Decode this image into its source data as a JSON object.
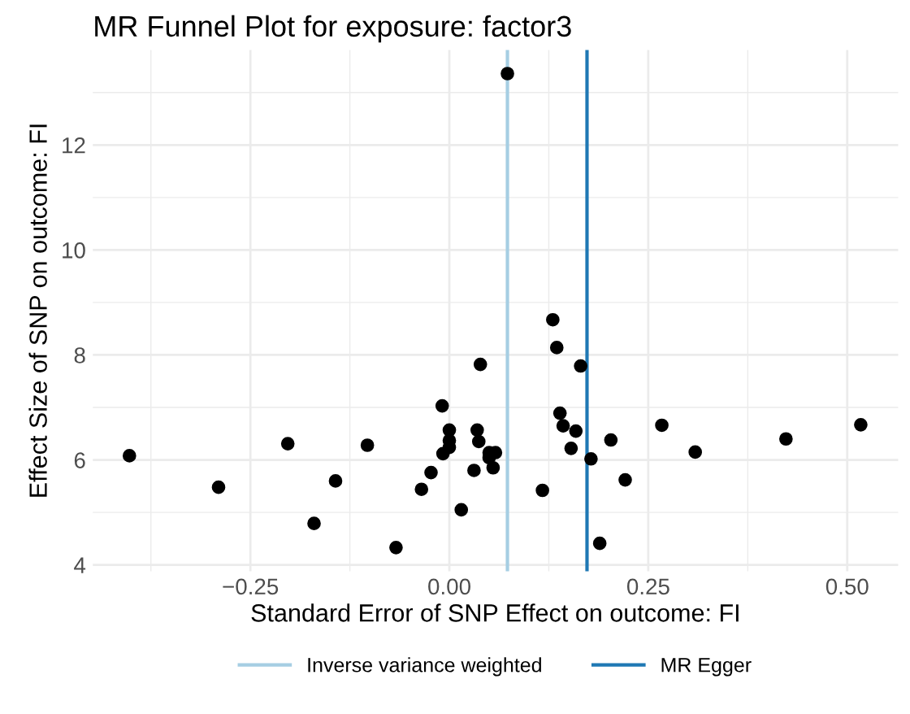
{
  "chart_data": {
    "type": "scatter",
    "title": "MR Funnel Plot for exposure: factor3",
    "xlabel": "Standard Error of SNP Effect on outcome: FI",
    "ylabel": "Effect Size of SNP on outcome: FI",
    "x": [
      -0.402,
      -0.29,
      -0.203,
      -0.17,
      -0.143,
      -0.103,
      -0.067,
      -0.035,
      -0.023,
      -0.009,
      -0.008,
      0.0,
      0.0,
      0.0,
      0.015,
      0.031,
      0.035,
      0.039,
      0.037,
      0.05,
      0.05,
      0.058,
      0.055,
      0.073,
      0.13,
      0.135,
      0.165,
      0.139,
      0.143,
      0.159,
      0.153,
      0.117,
      0.178,
      0.189,
      0.203,
      0.221,
      0.267,
      0.309,
      0.423,
      0.517
    ],
    "series": [
      {
        "color": "#000000",
        "values": [
          6.08,
          5.48,
          6.31,
          4.79,
          5.6,
          6.28,
          4.33,
          5.44,
          5.76,
          7.03,
          6.12,
          6.57,
          6.37,
          6.24,
          5.05,
          5.8,
          6.57,
          7.82,
          6.35,
          6.14,
          6.04,
          6.14,
          5.85,
          13.36,
          8.67,
          8.14,
          7.79,
          6.89,
          6.65,
          6.55,
          6.22,
          5.42,
          6.02,
          4.41,
          6.38,
          5.62,
          6.66,
          6.15,
          6.4,
          6.67
        ]
      }
    ],
    "marker": "circle",
    "xlim": [
      -0.448,
      0.564
    ],
    "ylim": [
      3.88,
      13.81
    ],
    "xticks": [
      {
        "value": -0.375,
        "label": null
      },
      {
        "value": -0.25,
        "label": "−0.25"
      },
      {
        "value": -0.125,
        "label": null
      },
      {
        "value": 0,
        "label": "0.00"
      },
      {
        "value": 0.125,
        "label": null
      },
      {
        "value": 0.25,
        "label": "0.25"
      },
      {
        "value": 0.375,
        "label": null
      },
      {
        "value": 0.5,
        "label": "0.50"
      }
    ],
    "yticks": [
      4,
      {
        "value": 5,
        "label": null
      },
      6,
      {
        "value": 7,
        "label": null
      },
      8,
      {
        "value": 9,
        "label": null
      },
      10,
      {
        "value": 11,
        "label": null
      },
      12,
      {
        "value": 13,
        "label": null
      }
    ],
    "grid": true,
    "legend": "bottom",
    "ref_lines": [
      {
        "axis": "x",
        "value": 0.073,
        "label": "Inverse variance weighted",
        "color": "#a6cee3"
      },
      {
        "axis": "x",
        "value": 0.173,
        "label": "MR Egger",
        "color": "#1f78b4"
      }
    ]
  }
}
